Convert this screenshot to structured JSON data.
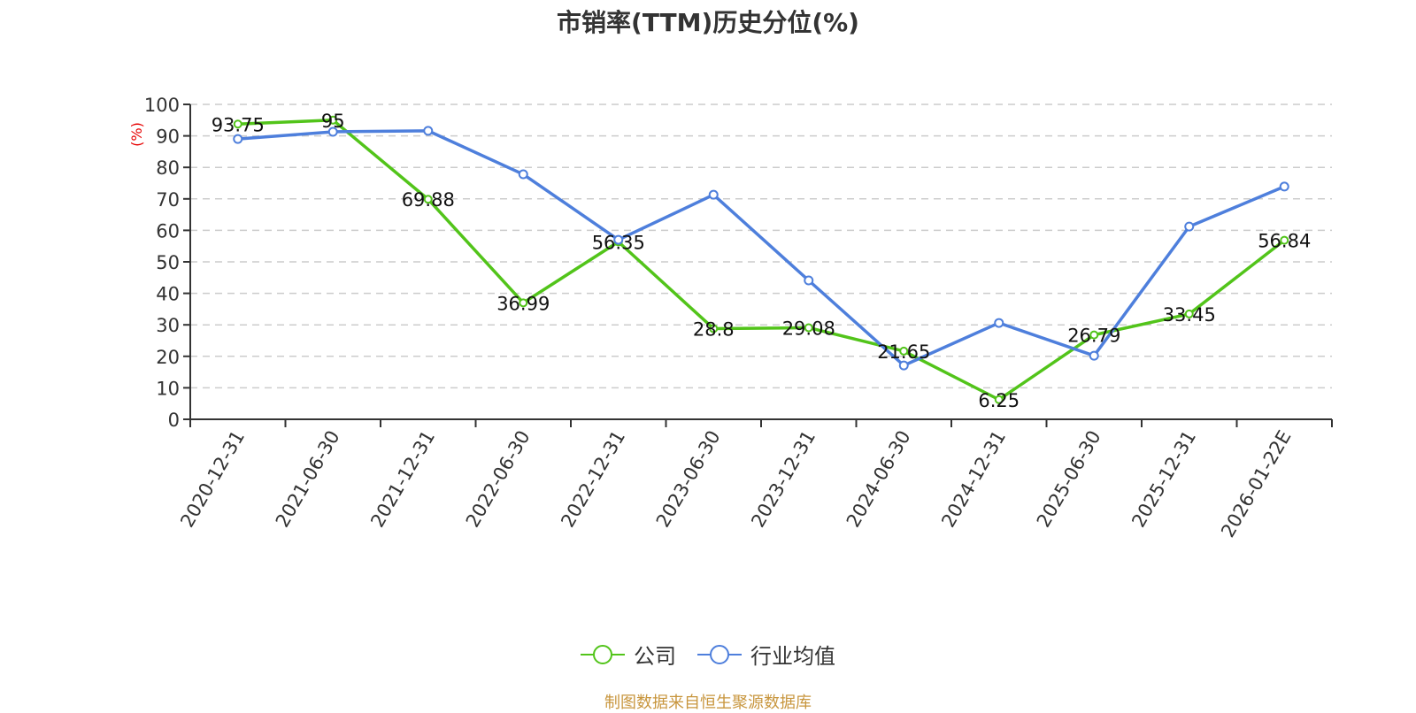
{
  "title": "市销率(TTM)历史分位(%)",
  "source": "制图数据来自恒生聚源数据库",
  "legend": [
    {
      "label": "公司",
      "color": "#52c41a"
    },
    {
      "label": "行业均值",
      "color": "#4e7fdc"
    }
  ],
  "chart_data": {
    "type": "line",
    "title": "市销率(TTM)历史分位(%)",
    "xlabel": "",
    "ylabel": "(%)",
    "ylim": [
      0,
      100
    ],
    "yticks": [
      0,
      10,
      20,
      30,
      40,
      50,
      60,
      70,
      80,
      90,
      100
    ],
    "grid": true,
    "legend_position": "bottom",
    "categories": [
      "2020-12-31",
      "2021-06-30",
      "2021-12-31",
      "2022-06-30",
      "2022-12-31",
      "2023-06-30",
      "2023-12-31",
      "2024-06-30",
      "2024-12-31",
      "2025-06-30",
      "2025-12-31",
      "2026-01-22E"
    ],
    "series": [
      {
        "name": "公司",
        "color": "#52c41a",
        "labeled": true,
        "values": [
          93.75,
          95,
          69.88,
          36.99,
          56.35,
          28.8,
          29.08,
          21.65,
          6.25,
          26.79,
          33.45,
          56.84
        ]
      },
      {
        "name": "行业均值",
        "color": "#4e7fdc",
        "labeled": false,
        "values": [
          89.0,
          91.3,
          91.6,
          77.8,
          57.0,
          71.3,
          44.1,
          17.1,
          30.6,
          20.2,
          61.2,
          73.9
        ]
      }
    ]
  }
}
